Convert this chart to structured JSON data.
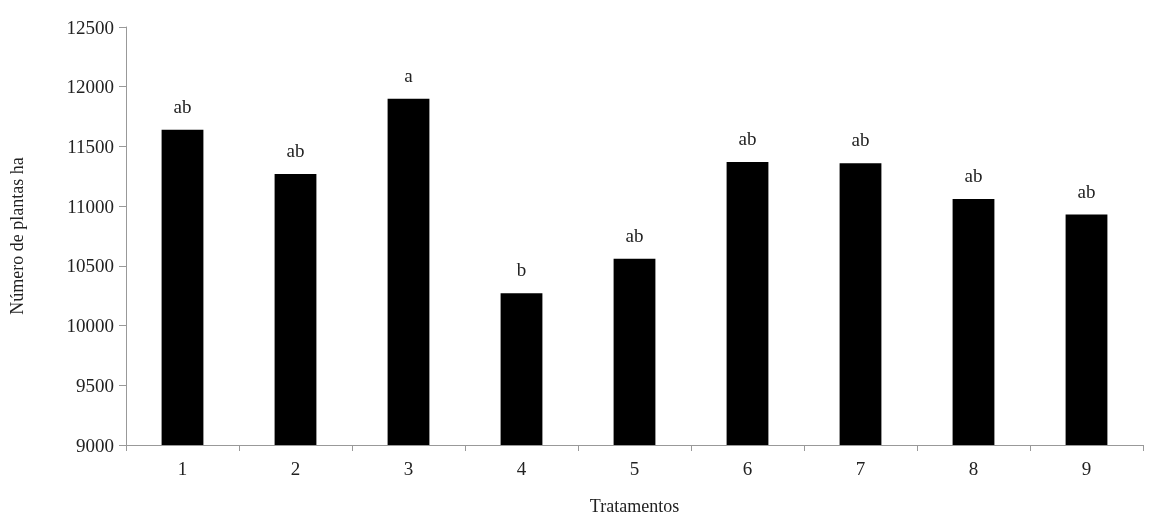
{
  "chart_data": {
    "type": "bar",
    "xlabel": "Tratamentos",
    "ylabel": "Número de plantas ha",
    "categories": [
      "1",
      "2",
      "3",
      "4",
      "5",
      "6",
      "7",
      "8",
      "9"
    ],
    "values": [
      11640,
      11270,
      11900,
      10270,
      10560,
      11370,
      11360,
      11060,
      10930
    ],
    "color": "#000000",
    "ylim": [
      9000,
      12500
    ],
    "yticks": [
      9000,
      9500,
      10000,
      10500,
      11000,
      11500,
      12000,
      12500
    ],
    "grid": false,
    "annotations": [
      {
        "text": "ab",
        "x": "1",
        "y": 11640
      },
      {
        "text": "ab",
        "x": "2",
        "y": 11270
      },
      {
        "text": "a",
        "x": "3",
        "y": 11900
      },
      {
        "text": "b",
        "x": "4",
        "y": 10270
      },
      {
        "text": "ab",
        "x": "5",
        "y": 10560
      },
      {
        "text": "ab",
        "x": "6",
        "y": 11370
      },
      {
        "text": "ab",
        "x": "7",
        "y": 11360
      },
      {
        "text": "ab",
        "x": "8",
        "y": 11060
      },
      {
        "text": "ab",
        "x": "9",
        "y": 10930
      }
    ]
  }
}
